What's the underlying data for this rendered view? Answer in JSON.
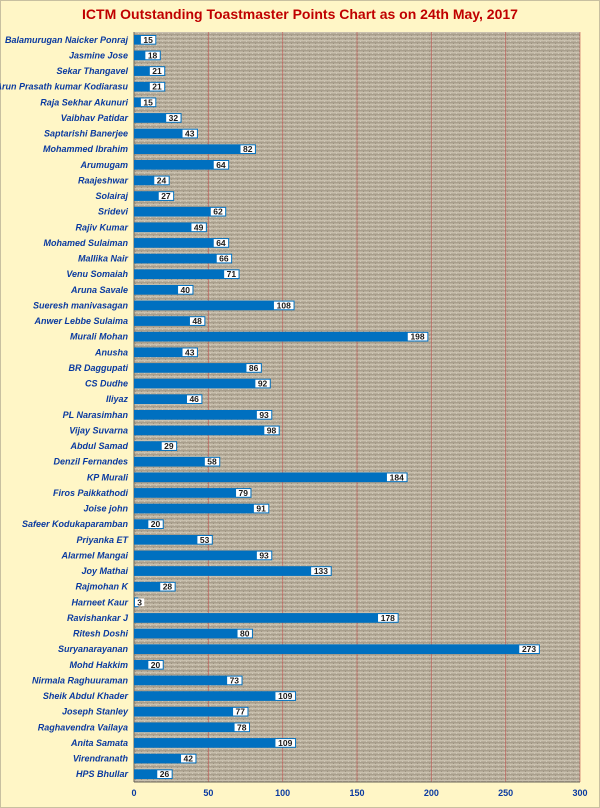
{
  "chart_data": {
    "type": "bar",
    "orientation": "horizontal",
    "title": "ICTM Outstanding Toastmaster  Points Chart as on 24th May, 2017",
    "xlim": [
      0,
      300
    ],
    "x_ticks": [
      0,
      50,
      100,
      150,
      200,
      250,
      300
    ],
    "grid": true,
    "bar_color": "#0070c0",
    "title_color": "#c00000",
    "label_color": "#0a3aa0",
    "plot_background": "#b8ae9c",
    "page_background": "#fff6c6",
    "gridline_color": "#c0504d",
    "categories": [
      "Balamurugan Naicker Ponraj",
      "Jasmine Jose",
      "Sekar Thangavel",
      "Arun Prasath kumar Kodiarasu",
      "Raja Sekhar Akunuri",
      "Vaibhav Patidar",
      "Saptarishi Banerjee",
      "Mohammed Ibrahim",
      "Arumugam",
      "Raajeshwar",
      "Solairaj",
      "Sridevi",
      "Rajiv Kumar",
      "Mohamed Sulaiman",
      "Mallika Nair",
      "Venu Somaiah",
      "Aruna Savale",
      "Sueresh manivasagan",
      "Anwer Lebbe Sulaima",
      "Murali Mohan",
      "Anusha",
      "BR Daggupati",
      "CS Dudhe",
      "Iliyaz",
      "PL Narasimhan",
      "Vijay Suvarna",
      "Abdul Samad",
      "Denzil Fernandes",
      "KP Murali",
      "Firos Paikkathodi",
      "Joise john",
      "Safeer Kodukaparamban",
      "Priyanka ET",
      "Alarmel Mangai",
      "Joy Mathai",
      "Rajmohan K",
      "Harneet Kaur",
      "Ravishankar J",
      "Ritesh Doshi",
      "Suryanarayanan",
      "Mohd Hakkim",
      "Nirmala Raghuuraman",
      "Sheik Abdul Khader",
      "Joseph Stanley",
      "Raghavendra Vailaya",
      "Anita Samata",
      "Virendranath",
      "HPS Bhullar"
    ],
    "values": [
      15,
      18,
      21,
      21,
      15,
      32,
      43,
      82,
      64,
      24,
      27,
      62,
      49,
      64,
      66,
      71,
      40,
      108,
      48,
      198,
      43,
      86,
      92,
      46,
      93,
      98,
      29,
      58,
      184,
      79,
      91,
      20,
      53,
      93,
      133,
      28,
      3,
      178,
      80,
      273,
      20,
      73,
      109,
      77,
      78,
      109,
      42,
      26
    ]
  }
}
